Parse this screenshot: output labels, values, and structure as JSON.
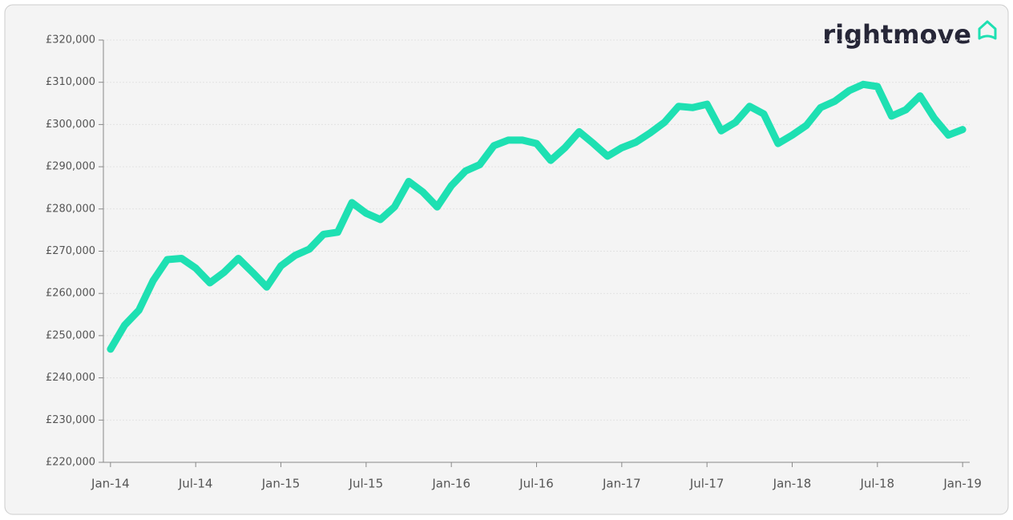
{
  "logo": "rightmove",
  "chart_data": {
    "type": "line",
    "categories": [
      "Jan-14",
      null,
      null,
      null,
      null,
      null,
      "Jul-14",
      null,
      null,
      null,
      null,
      null,
      "Jan-15",
      null,
      null,
      null,
      null,
      null,
      "Jul-15",
      null,
      null,
      null,
      null,
      null,
      "Jan-16",
      null,
      null,
      null,
      null,
      null,
      "Jul-16",
      null,
      null,
      null,
      null,
      null,
      "Jan-17",
      null,
      null,
      null,
      null,
      null,
      "Jul-17",
      null,
      null,
      null,
      null,
      null,
      "Jan-18",
      null,
      null,
      null,
      null,
      null,
      "Jul-18",
      null,
      null,
      null,
      null,
      null,
      "Jan-19"
    ],
    "series": [
      {
        "color": "#1ee0b2",
        "values": [
          246800,
          252500,
          256000,
          263000,
          268000,
          268300,
          266000,
          262500,
          265000,
          268300,
          265000,
          261500,
          266500,
          269000,
          270500,
          274000,
          274500,
          281500,
          279000,
          277500,
          280500,
          286500,
          284000,
          280500,
          285500,
          289000,
          290500,
          295000,
          296300,
          296300,
          295500,
          291500,
          294500,
          298300,
          295500,
          292500,
          294500,
          295800,
          298000,
          300500,
          304300,
          304000,
          304800,
          298500,
          300500,
          304300,
          302500,
          295500,
          297500,
          299800,
          304000,
          305500,
          308000,
          309500,
          309000,
          302000,
          303500,
          306800,
          301500,
          297500,
          298800
        ]
      }
    ],
    "ylim": [
      220000,
      320000
    ],
    "yticks": [
      {
        "value": 220000,
        "label": "£220,000"
      },
      {
        "value": 230000,
        "label": "£230,000"
      },
      {
        "value": 240000,
        "label": "£240,000"
      },
      {
        "value": 250000,
        "label": "£250,000"
      },
      {
        "value": 260000,
        "label": "£260,000"
      },
      {
        "value": 270000,
        "label": "£270,000"
      },
      {
        "value": 280000,
        "label": "£280,000"
      },
      {
        "value": 290000,
        "label": "£290,000"
      },
      {
        "value": 300000,
        "label": "£300,000"
      },
      {
        "value": 310000,
        "label": "£310,000"
      },
      {
        "value": 320000,
        "label": "£320,000"
      }
    ],
    "grid": true
  }
}
